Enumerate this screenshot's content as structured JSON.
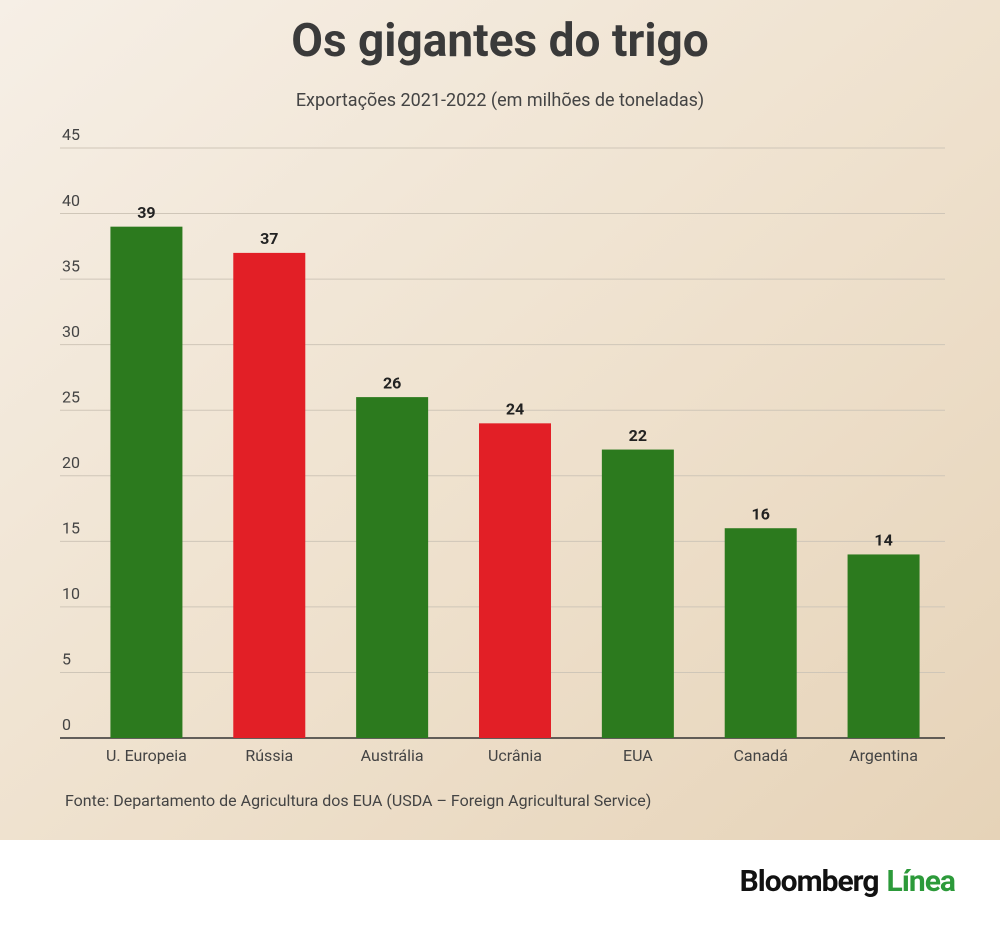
{
  "chart_data": {
    "type": "bar",
    "title": "Os gigantes do trigo",
    "subtitle": "Exportações 2021-2022 (em milhões de toneladas)",
    "categories": [
      "U. Europeia",
      "Rússia",
      "Austrália",
      "Ucrânia",
      "EUA",
      "Canadá",
      "Argentina"
    ],
    "values": [
      39,
      37,
      26,
      24,
      22,
      16,
      14
    ],
    "colors": [
      "#2c7a1e",
      "#e21f26",
      "#2c7a1e",
      "#e21f26",
      "#2c7a1e",
      "#2c7a1e",
      "#2c7a1e"
    ],
    "ylim": [
      0,
      45
    ],
    "yticks": [
      0,
      5,
      10,
      15,
      20,
      25,
      30,
      35,
      40,
      45
    ],
    "grid": true,
    "source": "Fonte: Departamento de Agricultura dos EUA (USDA – Foreign Agricultural Service)"
  },
  "logo": {
    "main": "Bloomberg",
    "accent": "Línea"
  }
}
